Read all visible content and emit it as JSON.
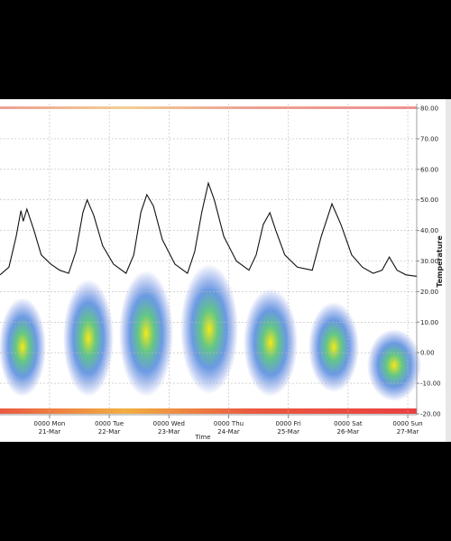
{
  "chart_data": {
    "type": "line",
    "x_label": "Time",
    "y_label": "Temperature",
    "xlim": [
      -0.83,
      6.15
    ],
    "xticks": [
      {
        "value": 0,
        "label": "0000 Mon"
      },
      {
        "value": 1,
        "label": "0000 Tue"
      },
      {
        "value": 2,
        "label": "0000 Wed"
      },
      {
        "value": 3,
        "label": "0000 Thu"
      },
      {
        "value": 4,
        "label": "0000 Fri"
      },
      {
        "value": 5,
        "label": "0000 Sat"
      },
      {
        "value": 6,
        "label": "0000 Sun"
      }
    ],
    "xtick_dates": [
      "21-Mar",
      "22-Mar",
      "23-Mar",
      "24-Mar",
      "25-Mar",
      "26-Mar",
      "27-Mar"
    ],
    "ylim": [
      -20,
      80
    ],
    "yticks": [
      {
        "value": -20,
        "label": "-20.00"
      },
      {
        "value": -10,
        "label": "-10.00"
      },
      {
        "value": 0,
        "label": "0.00"
      },
      {
        "value": 10,
        "label": "10.00"
      },
      {
        "value": 20,
        "label": "20.00"
      },
      {
        "value": 30,
        "label": "30.00"
      },
      {
        "value": 40,
        "label": "40.00"
      },
      {
        "value": 50,
        "label": "50.00"
      },
      {
        "value": 60,
        "label": "60.00"
      },
      {
        "value": 70,
        "label": "70.00"
      },
      {
        "value": 80,
        "label": "80.00"
      }
    ],
    "grid": true,
    "color": "#111111",
    "x": [
      -0.83,
      -0.68,
      -0.56,
      -0.48,
      -0.44,
      -0.38,
      -0.26,
      -0.14,
      0.02,
      0.17,
      0.32,
      0.44,
      0.56,
      0.63,
      0.74,
      0.89,
      1.07,
      1.28,
      1.41,
      1.53,
      1.63,
      1.74,
      1.89,
      2.1,
      2.31,
      2.43,
      2.55,
      2.66,
      2.76,
      2.92,
      3.13,
      3.34,
      3.46,
      3.58,
      3.69,
      3.79,
      3.94,
      4.15,
      4.4,
      4.55,
      4.73,
      4.88,
      5.06,
      5.24,
      5.42,
      5.57,
      5.69,
      5.82,
      5.97,
      6.15
    ],
    "values": [
      25.5,
      28,
      38,
      46.5,
      43,
      47,
      40,
      32,
      29,
      27,
      26,
      33,
      46,
      50,
      45,
      35,
      29,
      26,
      32,
      46,
      51.7,
      48,
      37,
      29,
      26,
      33,
      46,
      55.5,
      50,
      38,
      30,
      27,
      32,
      42,
      45.8,
      40,
      32,
      28,
      27,
      38,
      48.7,
      42,
      32,
      28,
      26,
      27,
      31.3,
      27,
      25.5,
      25
    ]
  }
}
